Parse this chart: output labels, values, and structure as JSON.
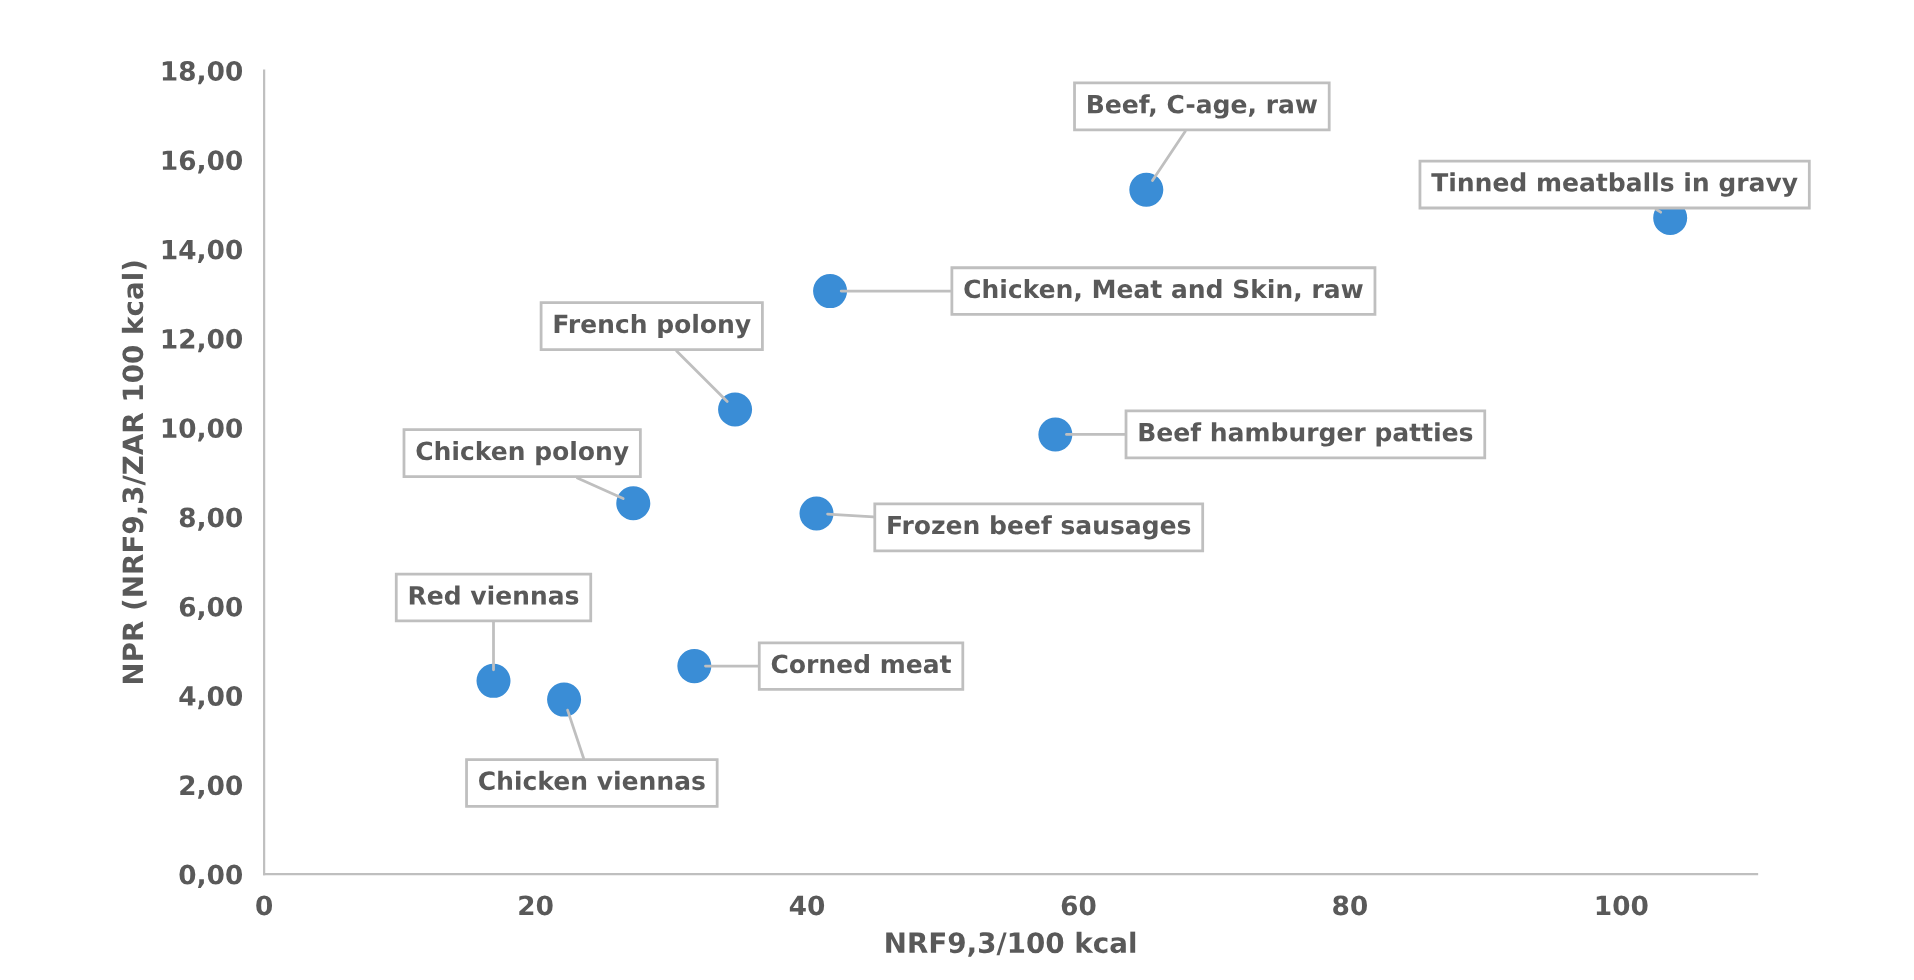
{
  "chart_data": {
    "type": "scatter",
    "xlabel": "NRF9,3/100 kcal",
    "ylabel": "NPR (NRF9,3/ZAR 100 kcal)",
    "xlim": [
      0,
      110
    ],
    "xticks": [
      0,
      20,
      40,
      60,
      80,
      100
    ],
    "ylim": [
      0,
      18
    ],
    "yticks": [
      {
        "value": 0,
        "label": "0,00"
      },
      {
        "value": 2,
        "label": "2,00"
      },
      {
        "value": 4,
        "label": "4,00"
      },
      {
        "value": 6,
        "label": "6,00"
      },
      {
        "value": 8,
        "label": "8,00"
      },
      {
        "value": 10,
        "label": "10,00"
      },
      {
        "value": 12,
        "label": "12,00"
      },
      {
        "value": 14,
        "label": "14,00"
      },
      {
        "value": 16,
        "label": "16,00"
      },
      {
        "value": 18,
        "label": "18,00"
      }
    ],
    "grid": false,
    "marker": "circle",
    "series": [
      {
        "color": "#3a8dd6",
        "x": [
          16.9,
          22.1,
          31.7,
          27.2,
          34.7,
          40.7,
          41.7,
          58.3,
          65.0,
          103.6
        ],
        "values": [
          4.33,
          3.91,
          4.66,
          8.31,
          10.41,
          8.08,
          13.06,
          9.85,
          15.33,
          14.7
        ]
      }
    ],
    "annotations": [
      {
        "text": "Red viennas",
        "x": 16.9,
        "y": 4.33
      },
      {
        "text": "Chicken viennas",
        "x": 22.1,
        "y": 3.91
      },
      {
        "text": "Corned meat",
        "x": 31.7,
        "y": 4.66
      },
      {
        "text": "Chicken polony",
        "x": 27.2,
        "y": 8.31
      },
      {
        "text": "French polony",
        "x": 34.7,
        "y": 10.41
      },
      {
        "text": "Frozen beef sausages",
        "x": 40.7,
        "y": 8.08
      },
      {
        "text": "Chicken, Meat and Skin, raw",
        "x": 41.7,
        "y": 13.06
      },
      {
        "text": "Beef hamburger patties",
        "x": 58.3,
        "y": 9.85
      },
      {
        "text": "Beef, C-age, raw",
        "x": 65.0,
        "y": 15.33
      },
      {
        "text": "Tinned meatballs in gravy",
        "x": 103.6,
        "y": 14.7
      }
    ]
  }
}
